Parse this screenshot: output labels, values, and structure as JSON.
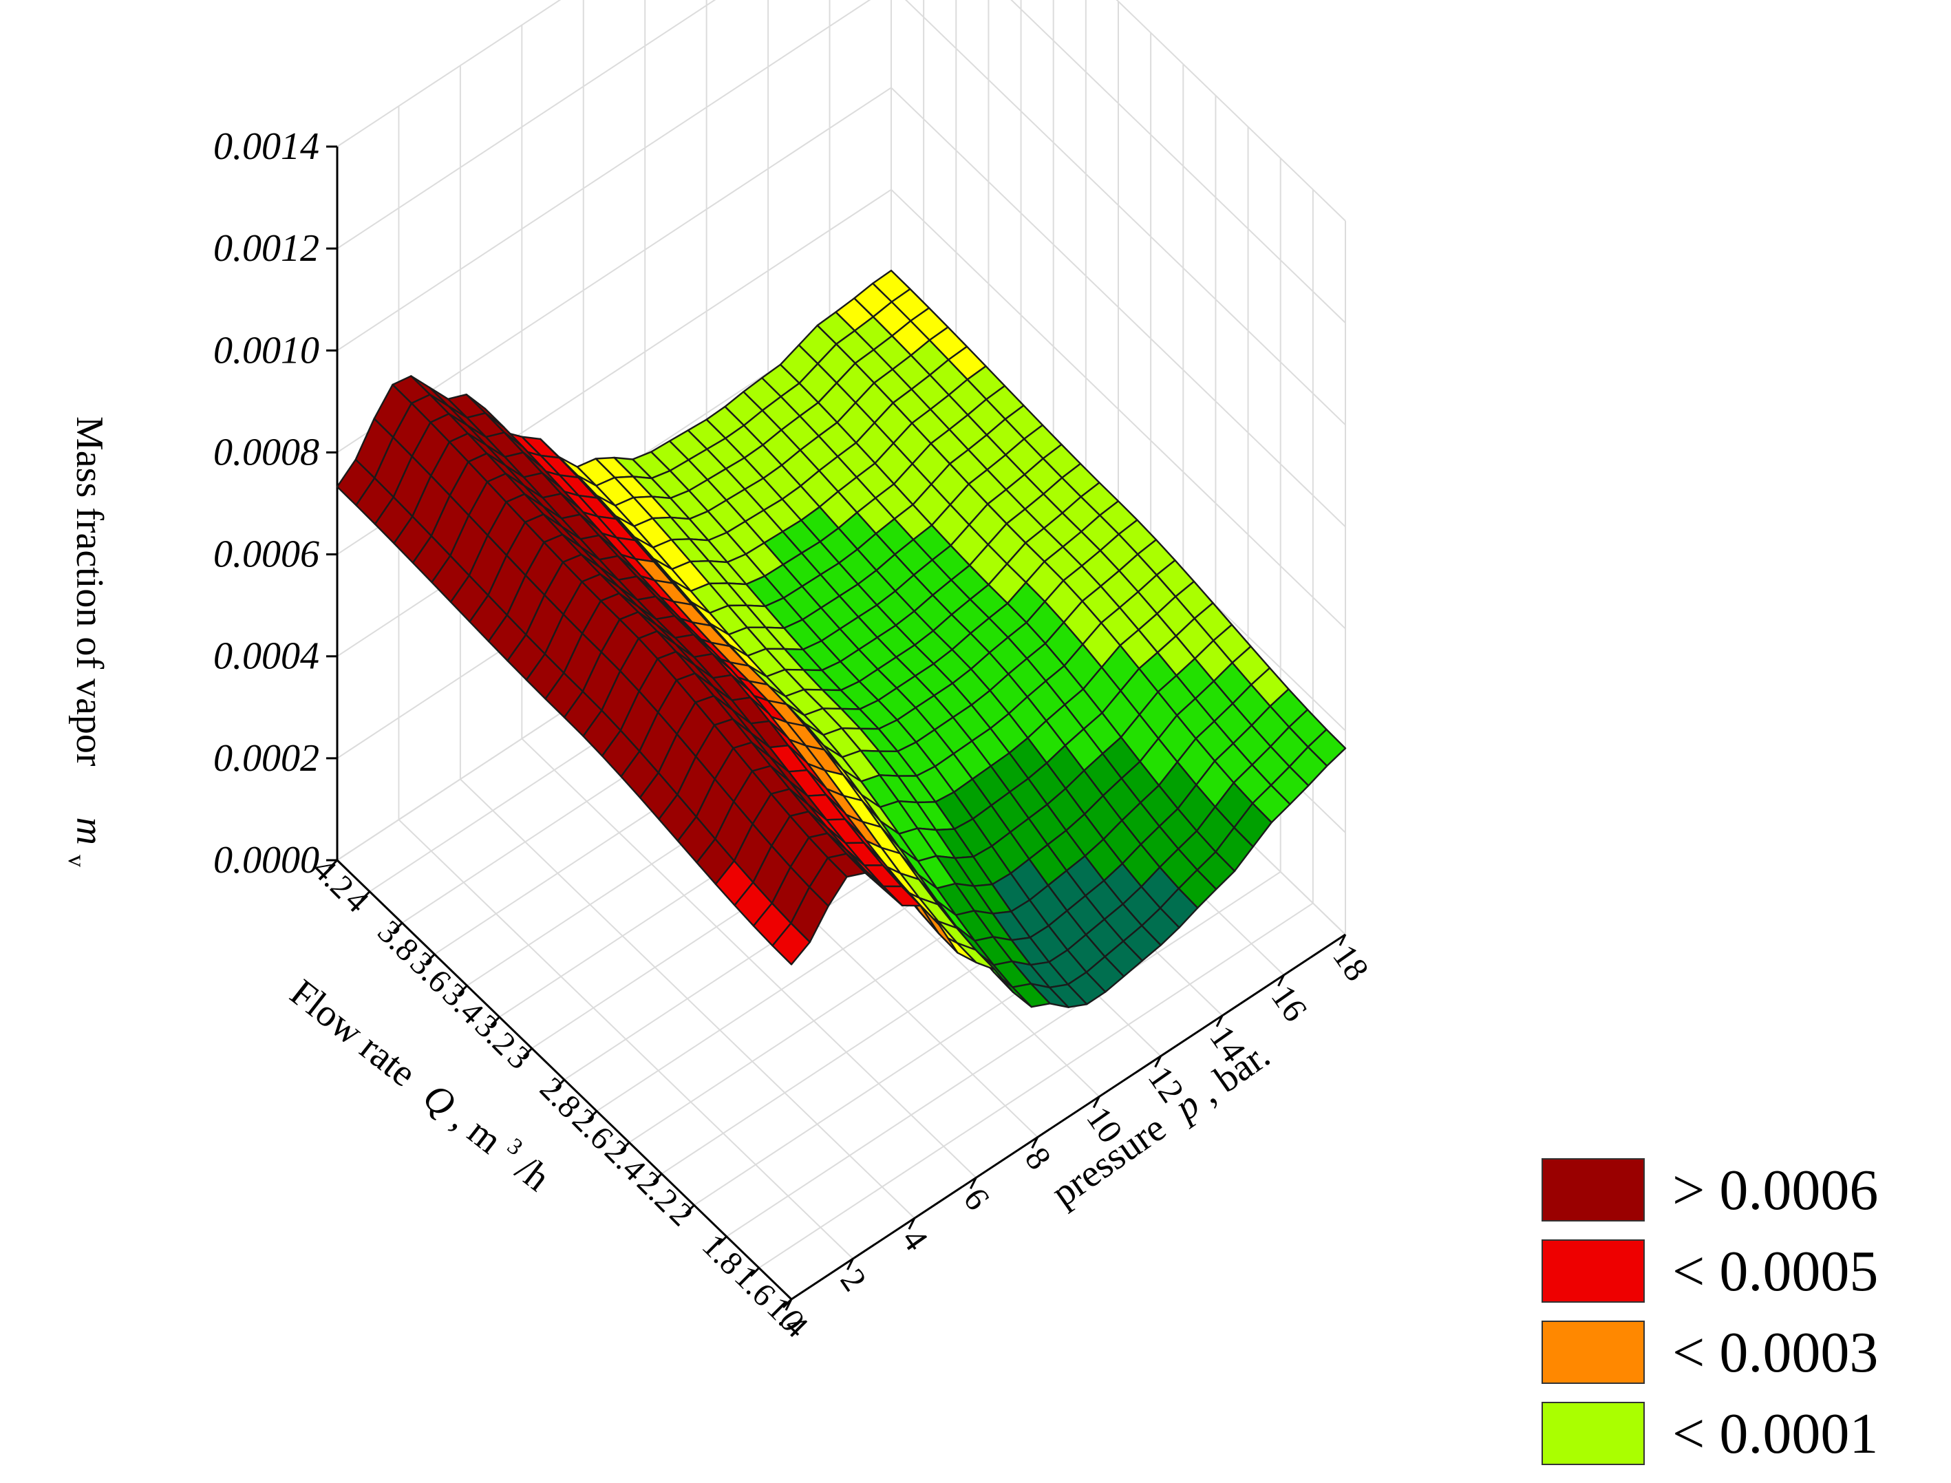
{
  "chart_data": {
    "type": "surface",
    "title": "",
    "zlabel": "Mass fraction of vapor",
    "zlabel_symbol": "m",
    "zlabel_subscript": "v",
    "xlabel": "Flow rate",
    "xlabel_symbol": "Q",
    "xlabel_unit": ", m",
    "xlabel_unit_sup": "3",
    "xlabel_unit_tail": "/h",
    "ylabel": "pressure",
    "ylabel_symbol": "p",
    "ylabel_unit": ", bar.",
    "x_ticks": [
      "4.2",
      "4",
      "3.8",
      "3.6",
      "3.4",
      "3.2",
      "3",
      "2.8",
      "2.6",
      "2.4",
      "2.2",
      "2",
      "1.8",
      "1.6",
      "1.4"
    ],
    "y_ticks": [
      "0",
      "2",
      "4",
      "6",
      "8",
      "10",
      "12",
      "14",
      "16",
      "18"
    ],
    "z_ticks": [
      "0.0000",
      "0.0002",
      "0.0004",
      "0.0006",
      "0.0008",
      "0.0010",
      "0.0012",
      "0.0014"
    ],
    "xlim": [
      1.4,
      4.2
    ],
    "ylim": [
      0,
      18
    ],
    "zlim": [
      0,
      0.0014
    ],
    "surface_profile": {
      "pressure": [
        0,
        2,
        4,
        6,
        8,
        10,
        12,
        14,
        16,
        18
      ],
      "mass_fraction": [
        0.00065,
        0.00085,
        0.00065,
        0.00038,
        0.00015,
        5e-05,
        5e-05,
        8e-05,
        0.00015,
        0.00018
      ]
    },
    "flow_effect": {
      "note_free": true,
      "flow_rate": [
        1.4,
        2.8,
        4.2
      ],
      "offset": [
        -0.00025,
        0.0,
        0.0001
      ]
    },
    "color_bands": [
      {
        "label": "> 0.0006",
        "color": "#9a0000"
      },
      {
        "label": "< 0.0005",
        "color": "#ee0000"
      },
      {
        "label": "< 0.0003",
        "color": "#ff8800"
      },
      {
        "label": "< 0.0001",
        "color": "#aaff00"
      }
    ],
    "extra_colors": {
      "yellow": "#ffff00",
      "green": "#22e000",
      "dark_green": "#00a000",
      "teal": "#006f4f"
    },
    "grid": true,
    "legend_position": "bottom-right"
  }
}
